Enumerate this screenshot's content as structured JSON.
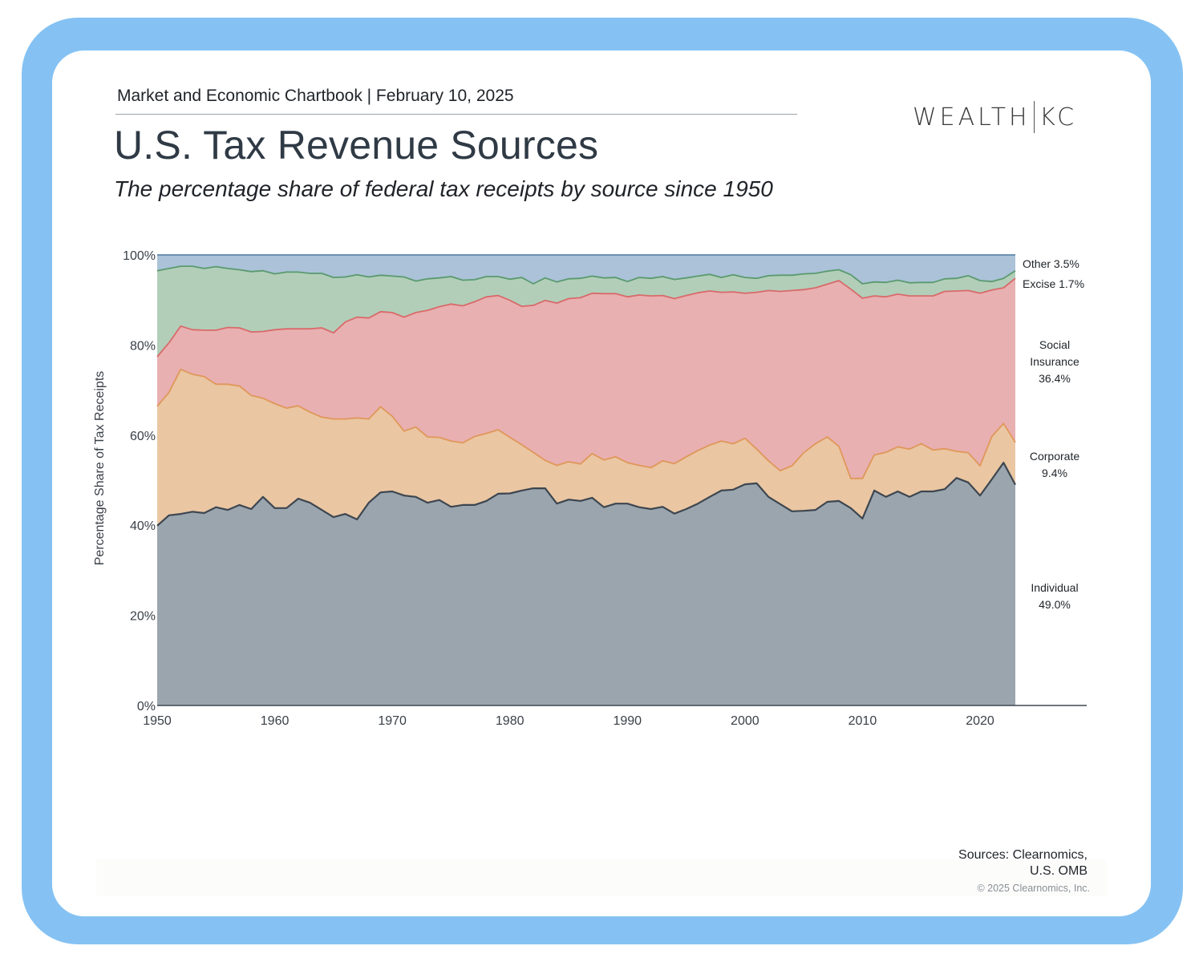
{
  "header": {
    "kicker": "Market and Economic Chartbook | February 10, 2025",
    "title": "U.S. Tax Revenue Sources",
    "subtitle": "The percentage share of federal tax receipts by source since 1950",
    "logo_left": "WEALTH",
    "logo_right": "KC"
  },
  "footer": {
    "sources_line1": "Sources: Clearnomics,",
    "sources_line2": "U.S. OMB",
    "copyright": "© 2025 Clearnomics, Inc."
  },
  "colors": {
    "frame": "#85c2f3",
    "individual_fill": "#9ba5ae",
    "individual_line": "#3d4650",
    "corporate_fill": "#eac6a2",
    "corporate_line": "#e0975a",
    "social_fill": "#e8b0b1",
    "social_line": "#d96a6a",
    "excise_fill": "#b2ceb9",
    "excise_line": "#5a9a6e",
    "other_fill": "#abc2d8",
    "other_line": "#5f86ad"
  },
  "chart_data": {
    "type": "area",
    "stacked": true,
    "title": "U.S. Tax Revenue Sources",
    "xlabel": "",
    "ylabel": "Percentage Share of Tax Receipts",
    "xlim": [
      1950,
      2029
    ],
    "ylim": [
      0,
      100
    ],
    "x_ticks": [
      "1950",
      "1960",
      "1970",
      "1980",
      "1990",
      "2000",
      "2010",
      "2020"
    ],
    "y_ticks": [
      "0%",
      "20%",
      "40%",
      "60%",
      "80%",
      "100%"
    ],
    "grid": false,
    "legend": "right (inline end labels)",
    "x": [
      1950,
      1951,
      1952,
      1953,
      1954,
      1955,
      1956,
      1957,
      1958,
      1959,
      1960,
      1961,
      1962,
      1963,
      1964,
      1965,
      1966,
      1967,
      1968,
      1969,
      1970,
      1971,
      1972,
      1973,
      1974,
      1975,
      1976,
      1977,
      1978,
      1979,
      1980,
      1981,
      1982,
      1983,
      1984,
      1985,
      1986,
      1987,
      1988,
      1989,
      1990,
      1991,
      1992,
      1993,
      1994,
      1995,
      1996,
      1997,
      1998,
      1999,
      2000,
      2001,
      2002,
      2003,
      2004,
      2005,
      2006,
      2007,
      2008,
      2009,
      2010,
      2011,
      2012,
      2013,
      2014,
      2015,
      2016,
      2017,
      2018,
      2019,
      2020,
      2021,
      2022,
      2023
    ],
    "series": [
      {
        "name": "Individual",
        "end_label": "Individual",
        "end_value": "49.0%",
        "values": [
          39.9,
          42.2,
          42.5,
          43.0,
          42.7,
          44.0,
          43.4,
          44.5,
          43.6,
          46.3,
          43.8,
          43.8,
          45.9,
          45.0,
          43.4,
          41.8,
          42.5,
          41.3,
          45.0,
          47.3,
          47.5,
          46.6,
          46.3,
          45.0,
          45.6,
          44.1,
          44.5,
          44.5,
          45.4,
          47.0,
          47.2,
          47.7,
          48.2,
          48.2,
          44.8,
          45.7,
          45.4,
          46.1,
          44.0,
          44.8,
          44.8,
          44.0,
          43.6,
          44.1,
          43.0,
          43.6,
          44.8,
          46.3,
          47.7,
          47.9,
          49.1,
          49.3,
          46.3,
          44.7,
          43.1,
          43.2,
          43.4,
          45.2,
          45.4,
          43.8,
          41.5,
          47.7,
          46.3,
          47.5,
          46.3,
          47.5,
          47.5,
          48.0,
          50.5,
          49.5,
          46.6,
          50.2,
          53.9,
          49.0
        ]
      },
      {
        "name": "Corporate",
        "end_label": "Corporate",
        "end_value": "9.4%",
        "values": [
          26.5,
          27.3,
          32.1,
          30.5,
          30.3,
          27.3,
          27.9,
          26.4,
          25.2,
          21.9,
          23.2,
          22.2,
          20.6,
          20.1,
          20.6,
          21.8,
          21.1,
          22.5,
          18.6,
          19.0,
          16.7,
          14.3,
          15.5,
          14.6,
          13.9,
          14.6,
          13.8,
          15.2,
          15.0,
          14.2,
          12.5,
          10.2,
          8.0,
          6.2,
          8.5,
          8.4,
          8.2,
          9.8,
          10.5,
          10.4,
          9.1,
          9.3,
          9.2,
          10.2,
          11.2,
          11.6,
          11.8,
          11.5,
          11.0,
          10.2,
          10.2,
          7.6,
          8.0,
          7.4,
          10.1,
          12.9,
          14.7,
          14.4,
          12.1,
          6.6,
          8.9,
          7.9,
          9.9,
          9.9,
          10.6,
          10.6,
          9.2,
          9.0,
          5.9,
          6.6,
          6.6,
          9.5,
          8.7,
          9.4
        ]
      },
      {
        "name": "Social Insurance",
        "end_label": "Social Insurance",
        "end_value": "36.4%",
        "values": [
          11.0,
          11.0,
          9.6,
          9.9,
          10.3,
          12.0,
          12.6,
          12.9,
          14.1,
          14.8,
          16.4,
          17.6,
          17.1,
          18.5,
          19.8,
          19.1,
          21.5,
          22.4,
          22.4,
          21.1,
          23.0,
          25.3,
          25.4,
          28.1,
          29.0,
          30.4,
          30.4,
          29.9,
          30.3,
          29.8,
          30.5,
          30.7,
          32.6,
          35.5,
          36.0,
          36.2,
          36.9,
          35.6,
          36.9,
          36.2,
          36.8,
          37.8,
          38.1,
          36.7,
          37.0,
          35.8,
          35.0,
          34.2,
          33.0,
          33.7,
          32.2,
          34.8,
          37.8,
          39.8,
          38.9,
          36.2,
          34.6,
          33.9,
          36.8,
          42.0,
          40.0,
          35.3,
          34.5,
          33.9,
          34.0,
          32.8,
          34.2,
          34.9,
          35.6,
          36.0,
          38.3,
          32.5,
          30.1,
          36.4
        ]
      },
      {
        "name": "Excise",
        "end_label": "Excise",
        "end_value": "1.7%",
        "values": [
          19.1,
          16.5,
          13.3,
          14.1,
          13.7,
          14.1,
          13.1,
          12.9,
          13.4,
          13.5,
          12.4,
          12.6,
          12.6,
          12.3,
          12.1,
          12.3,
          10.0,
          9.4,
          9.1,
          8.1,
          8.1,
          8.9,
          7.0,
          7.0,
          6.4,
          6.1,
          5.7,
          4.9,
          4.5,
          4.2,
          4.7,
          6.4,
          4.8,
          5.0,
          4.7,
          4.4,
          4.3,
          3.8,
          3.5,
          3.6,
          3.4,
          3.9,
          3.9,
          4.2,
          4.3,
          3.9,
          3.7,
          3.7,
          3.3,
          3.8,
          3.5,
          3.1,
          3.3,
          3.6,
          3.4,
          3.5,
          3.2,
          2.9,
          2.4,
          3.2,
          3.2,
          3.1,
          3.2,
          3.1,
          2.9,
          3.0,
          3.0,
          2.8,
          2.8,
          3.3,
          2.8,
          1.9,
          2.1,
          1.7
        ]
      },
      {
        "name": "Other",
        "end_label": "Other",
        "end_value": "3.5%",
        "values": [
          3.5,
          3.0,
          2.5,
          2.5,
          3.0,
          2.6,
          3.0,
          3.3,
          3.7,
          3.5,
          4.2,
          3.8,
          3.8,
          4.1,
          4.1,
          5.0,
          4.9,
          4.4,
          4.9,
          4.5,
          4.7,
          4.9,
          5.8,
          5.3,
          5.1,
          4.8,
          5.6,
          5.5,
          4.8,
          4.8,
          5.4,
          5.0,
          6.4,
          5.1,
          6.0,
          5.3,
          5.2,
          4.7,
          5.1,
          5.0,
          5.9,
          5.0,
          5.2,
          4.8,
          5.5,
          5.1,
          4.7,
          4.3,
          5.0,
          4.4,
          5.0,
          5.2,
          4.6,
          4.5,
          4.5,
          4.2,
          4.1,
          3.6,
          3.3,
          4.4,
          6.4,
          6.0,
          6.1,
          5.6,
          6.2,
          6.1,
          6.1,
          5.3,
          5.2,
          4.6,
          5.7,
          5.9,
          5.2,
          3.5
        ]
      }
    ]
  }
}
